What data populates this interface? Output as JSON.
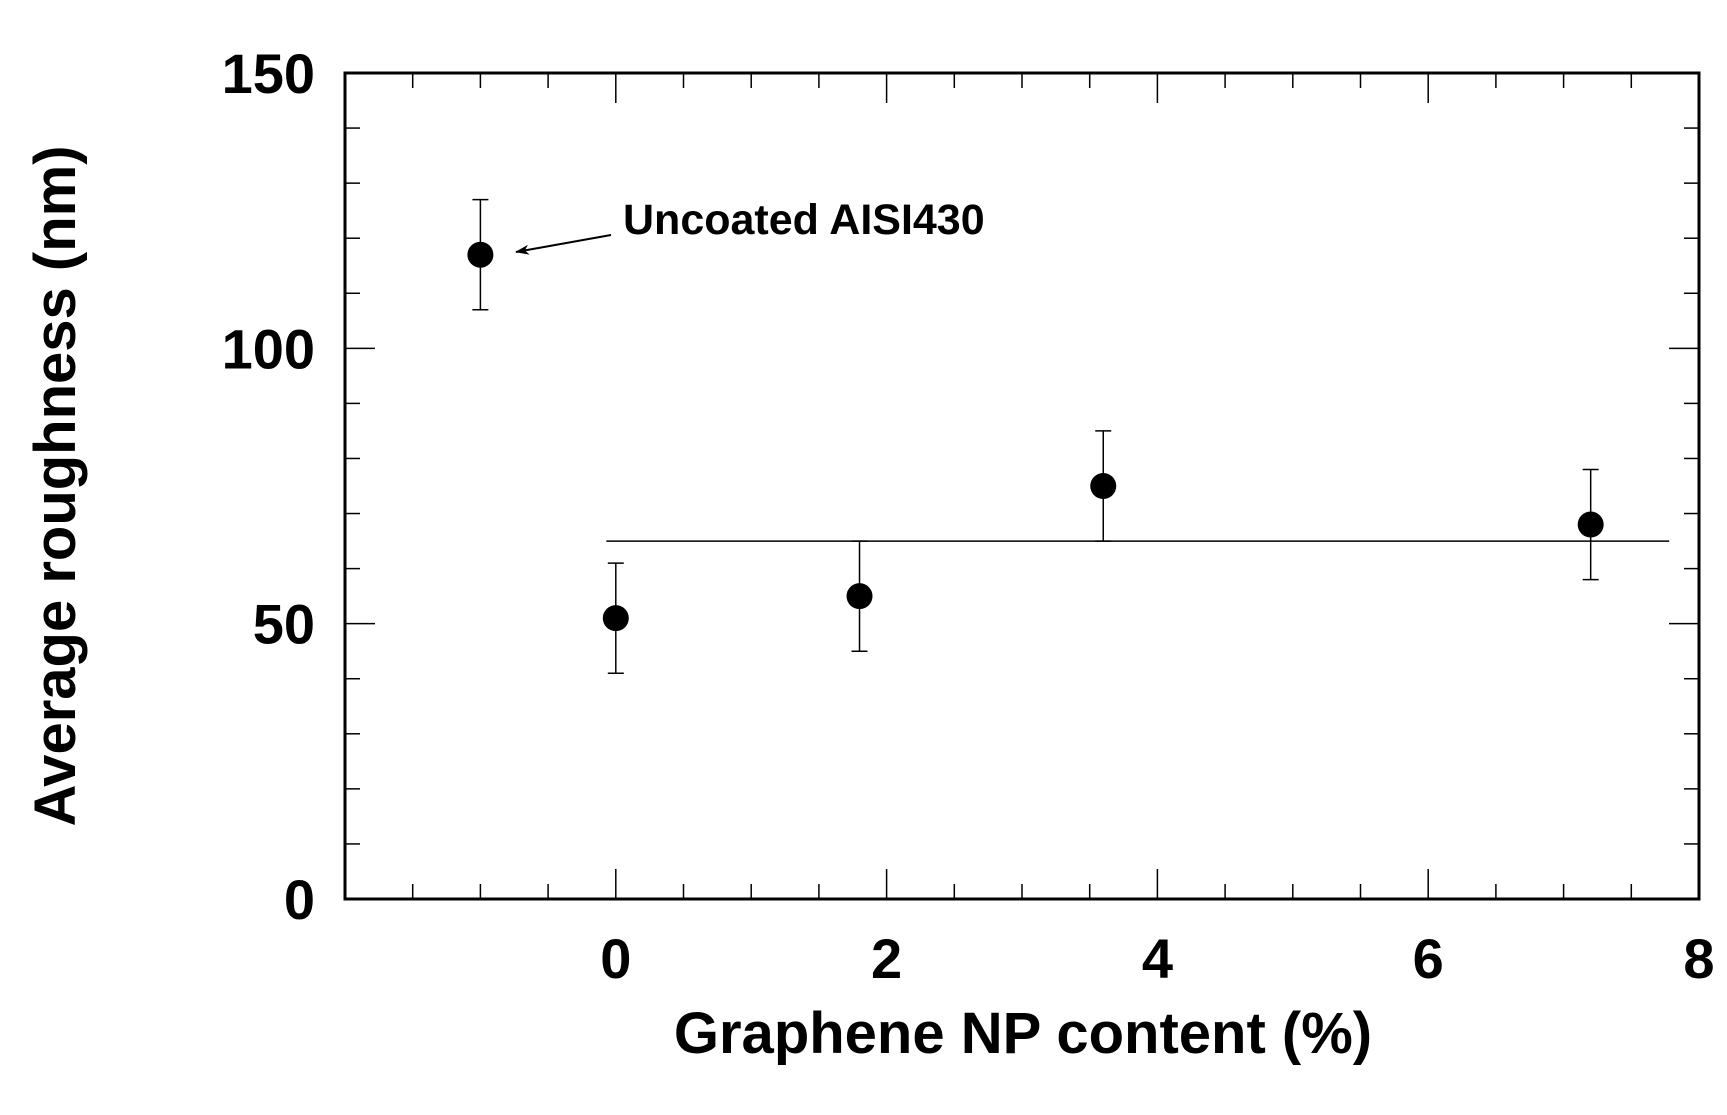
{
  "chart_data": {
    "type": "scatter",
    "xlabel": "Graphene NP content (%)",
    "ylabel": "Average roughness (nm)",
    "xlim": [
      -2,
      8
    ],
    "ylim": [
      0,
      150
    ],
    "xticks": [
      0,
      2,
      4,
      6,
      8
    ],
    "yticks": [
      0,
      50,
      100,
      150
    ],
    "x_minor_ticks": [
      -1.5,
      -1,
      -0.5,
      0.5,
      1,
      1.5,
      2.5,
      3,
      3.5,
      4.5,
      5,
      5.5,
      6.5,
      7,
      7.5
    ],
    "y_minor_ticks": [
      10,
      20,
      30,
      40,
      60,
      70,
      80,
      90,
      110,
      120,
      130,
      140
    ],
    "series": [
      {
        "color": "#000000",
        "x": [
          -1,
          0,
          1.8,
          3.6,
          7.2
        ],
        "y": [
          117,
          51,
          55,
          75,
          68
        ],
        "yerr": [
          10,
          10,
          10,
          10,
          10
        ]
      }
    ],
    "fit_line": {
      "x": [
        -0.07,
        7.78
      ],
      "y": [
        65,
        65
      ]
    },
    "annotations": [
      {
        "text": "Uncoated AISI430"
      }
    ]
  }
}
